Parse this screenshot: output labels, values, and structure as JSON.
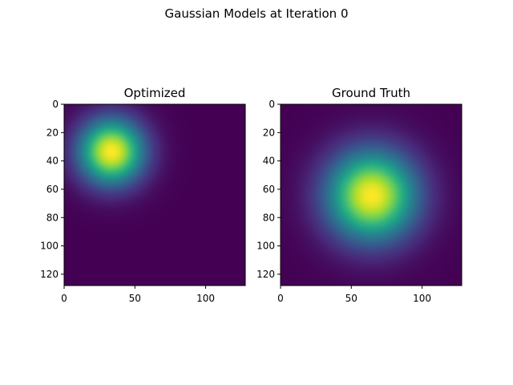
{
  "figure": {
    "suptitle": "Gaussian Models at Iteration 0"
  },
  "chart_data": [
    {
      "type": "heatmap",
      "title": "Optimized",
      "colormap": "viridis",
      "image_size": [
        128,
        128
      ],
      "gaussian": {
        "center_x": 33,
        "center_y": 33,
        "sigma": 16,
        "peak": 1.0
      },
      "xlim": [
        0,
        128
      ],
      "ylim": [
        128,
        0
      ],
      "xticks": [
        0,
        50,
        100
      ],
      "yticks": [
        0,
        20,
        40,
        60,
        80,
        100,
        120
      ],
      "grid": false
    },
    {
      "type": "heatmap",
      "title": "Ground Truth",
      "colormap": "viridis",
      "image_size": [
        128,
        128
      ],
      "gaussian": {
        "center_x": 64,
        "center_y": 64,
        "sigma": 22,
        "peak": 1.0
      },
      "xlim": [
        0,
        128
      ],
      "ylim": [
        128,
        0
      ],
      "xticks": [
        0,
        50,
        100
      ],
      "yticks": [
        0,
        20,
        40,
        60,
        80,
        100,
        120
      ],
      "grid": false
    }
  ],
  "colors": {
    "viridis": [
      "#440154",
      "#482878",
      "#3e4989",
      "#31688e",
      "#26828e",
      "#1f9e89",
      "#35b779",
      "#6ece58",
      "#b5de2b",
      "#fde725"
    ]
  }
}
